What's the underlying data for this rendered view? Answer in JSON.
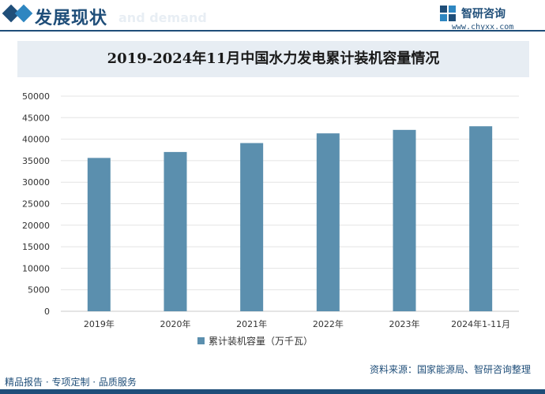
{
  "header": {
    "title": "发展现状",
    "sub": "and demand",
    "brand_name": "智研咨询",
    "brand_url": "www.chyxx.com"
  },
  "footer": {
    "left": "精品报告 · 专项定制 · 品质服务",
    "source": "资料来源：国家能源局、智研咨询整理"
  },
  "watermark": "智研咨询",
  "colors": {
    "bar": "#5b8fae",
    "brand": "#1f4e79"
  },
  "chart_data": {
    "type": "bar",
    "title": "2019-2024年11月中国水力发电累计装机容量情况",
    "categories": [
      "2019年",
      "2020年",
      "2021年",
      "2022年",
      "2023年",
      "2024年1-11月"
    ],
    "series": [
      {
        "name": "累计装机容量（万千瓦）",
        "values": [
          35640,
          37016,
          39094,
          41350,
          42154,
          43000
        ]
      }
    ],
    "ylim": [
      0,
      50000
    ],
    "yticks": [
      0,
      5000,
      10000,
      15000,
      20000,
      25000,
      30000,
      35000,
      40000,
      45000,
      50000
    ],
    "grid": true,
    "legend": "bottom"
  }
}
